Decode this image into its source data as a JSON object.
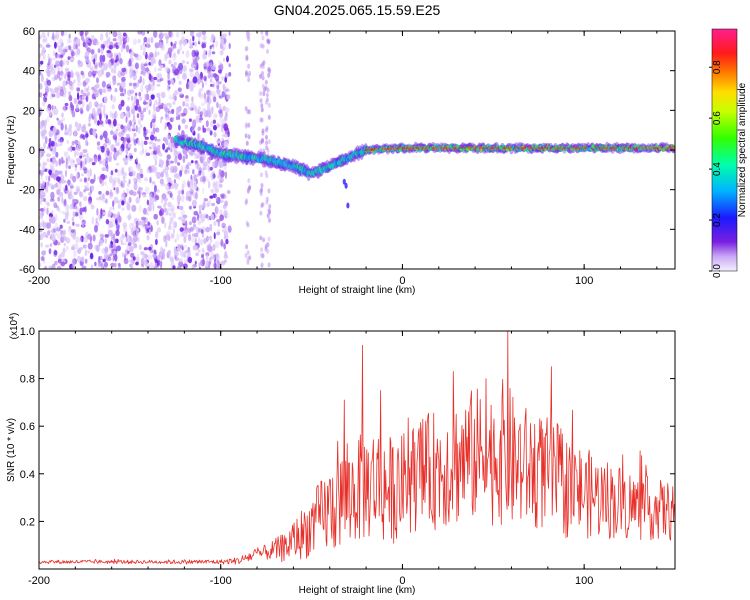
{
  "figure": {
    "title": "GN04.2025.065.15.59.E25"
  },
  "colors": {
    "snr_line": "#e8302a",
    "axis": "#000000",
    "background": "#ffffff"
  },
  "chart_data": [
    {
      "type": "heatmap",
      "title": "GN04.2025.065.15.59.E25",
      "xlabel": "Height of straight line (km)",
      "ylabel": "Frequency (Hz)",
      "xlim": [
        -200,
        150
      ],
      "ylim": [
        -60,
        60
      ],
      "x_ticks": [
        -200,
        -100,
        0,
        100
      ],
      "y_ticks": [
        -60,
        -40,
        -20,
        0,
        20,
        40,
        60
      ],
      "colormap": "rainbow (purple → blue → cyan → green → yellow → red → magenta)",
      "colorbar": {
        "label": "Normalized spectral amplitude",
        "range": [
          0.0,
          0.95
        ],
        "ticks": [
          0.0,
          0.2,
          0.4,
          0.6,
          0.8
        ]
      },
      "ridge": {
        "description": "Spectral ridge: near 0 Hz above ~-20 km, dipping to about -15 Hz near -50 km; broadband low-amplitude noise below about -95 km",
        "x": [
          -125,
          -110,
          -100,
          -90,
          -80,
          -70,
          -60,
          -50,
          -45,
          -40,
          -30,
          -20,
          0,
          20,
          50,
          100,
          150
        ],
        "y": [
          5,
          2,
          -2,
          -3,
          -4,
          -6,
          -8,
          -12,
          -10,
          -8,
          -4,
          0,
          1,
          1,
          1,
          1,
          1
        ]
      }
    },
    {
      "type": "line",
      "xlabel": "Height of straight line (km)",
      "ylabel": "SNR (10 * v/v)",
      "multiplier_label": "(x10",
      "multiplier_exp": "4",
      "xlim": [
        -200,
        150
      ],
      "ylim": [
        0,
        1.0
      ],
      "x_ticks": [
        -200,
        -100,
        0,
        100
      ],
      "y_ticks": [
        0.2,
        0.4,
        0.6,
        0.8,
        1.0
      ],
      "series": [
        {
          "x": [
            -200,
            -180,
            -160,
            -140,
            -120,
            -100,
            -90,
            -85,
            -80,
            -75,
            -70,
            -65,
            -60,
            -55,
            -50,
            -45,
            -40,
            -35,
            -30,
            -25,
            -20,
            -15,
            -10,
            -5,
            0,
            5,
            10,
            20,
            30,
            40,
            50,
            58,
            60,
            70,
            80,
            85,
            90,
            100,
            110,
            120,
            130,
            140,
            150
          ],
          "y": [
            0.03,
            0.03,
            0.03,
            0.03,
            0.03,
            0.03,
            0.035,
            0.05,
            0.06,
            0.07,
            0.08,
            0.09,
            0.12,
            0.15,
            0.18,
            0.22,
            0.25,
            0.28,
            0.3,
            0.33,
            0.35,
            0.37,
            0.34,
            0.33,
            0.35,
            0.38,
            0.4,
            0.42,
            0.45,
            0.48,
            0.47,
            0.5,
            0.45,
            0.42,
            0.4,
            0.38,
            0.35,
            0.32,
            0.3,
            0.28,
            0.26,
            0.25,
            0.24
          ],
          "noise_amplitude": [
            0.005,
            0.005,
            0.005,
            0.005,
            0.006,
            0.006,
            0.01,
            0.015,
            0.02,
            0.02,
            0.03,
            0.04,
            0.05,
            0.07,
            0.08,
            0.1,
            0.12,
            0.13,
            0.14,
            0.14,
            0.15,
            0.15,
            0.15,
            0.14,
            0.14,
            0.14,
            0.15,
            0.16,
            0.17,
            0.18,
            0.18,
            0.2,
            0.18,
            0.16,
            0.15,
            0.15,
            0.14,
            0.12,
            0.11,
            0.1,
            0.09,
            0.08,
            0.08
          ],
          "peaks": [
            {
              "x": -22,
              "y": 0.94
            },
            {
              "x": -32,
              "y": 0.71
            },
            {
              "x": -12,
              "y": 0.75
            },
            {
              "x": 28,
              "y": 0.83
            },
            {
              "x": 58,
              "y": 1.0
            },
            {
              "x": 82,
              "y": 0.85
            },
            {
              "x": 46,
              "y": 0.8
            }
          ]
        }
      ]
    }
  ]
}
